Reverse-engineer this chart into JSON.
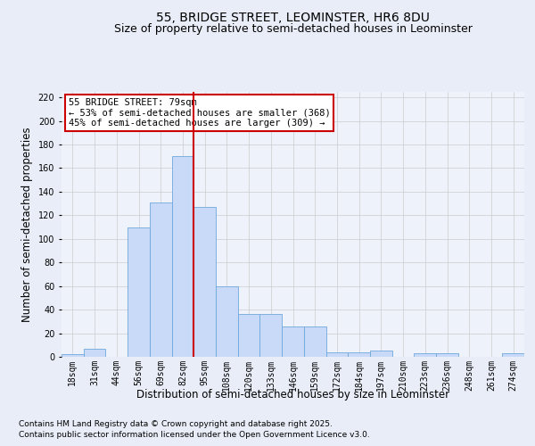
{
  "title": "55, BRIDGE STREET, LEOMINSTER, HR6 8DU",
  "subtitle": "Size of property relative to semi-detached houses in Leominster",
  "xlabel": "Distribution of semi-detached houses by size in Leominster",
  "ylabel": "Number of semi-detached properties",
  "categories": [
    "18sqm",
    "31sqm",
    "44sqm",
    "56sqm",
    "69sqm",
    "82sqm",
    "95sqm",
    "108sqm",
    "120sqm",
    "133sqm",
    "146sqm",
    "159sqm",
    "172sqm",
    "184sqm",
    "197sqm",
    "210sqm",
    "223sqm",
    "236sqm",
    "248sqm",
    "261sqm",
    "274sqm"
  ],
  "values": [
    2,
    7,
    0,
    110,
    131,
    170,
    127,
    60,
    36,
    36,
    26,
    26,
    4,
    4,
    5,
    0,
    3,
    3,
    0,
    0,
    3
  ],
  "bar_color": "#c9daf8",
  "bar_edge_color": "#6fa8dc",
  "grid_color": "#cccccc",
  "vline_pos": 5.5,
  "vline_color": "#cc0000",
  "annotation_box_text": "55 BRIDGE STREET: 79sqm\n← 53% of semi-detached houses are smaller (368)\n45% of semi-detached houses are larger (309) →",
  "annotation_box_color": "#cc0000",
  "annotation_box_facecolor": "#ffffff",
  "footer_line1": "Contains HM Land Registry data © Crown copyright and database right 2025.",
  "footer_line2": "Contains public sector information licensed under the Open Government Licence v3.0.",
  "ylim": [
    0,
    225
  ],
  "yticks": [
    0,
    20,
    40,
    60,
    80,
    100,
    120,
    140,
    160,
    180,
    200,
    220
  ],
  "background_color": "#e8edf7",
  "plot_background": "#eef2fb",
  "title_fontsize": 10,
  "subtitle_fontsize": 9,
  "axis_label_fontsize": 8.5,
  "tick_fontsize": 7,
  "footer_fontsize": 6.5,
  "annotation_fontsize": 7.5
}
